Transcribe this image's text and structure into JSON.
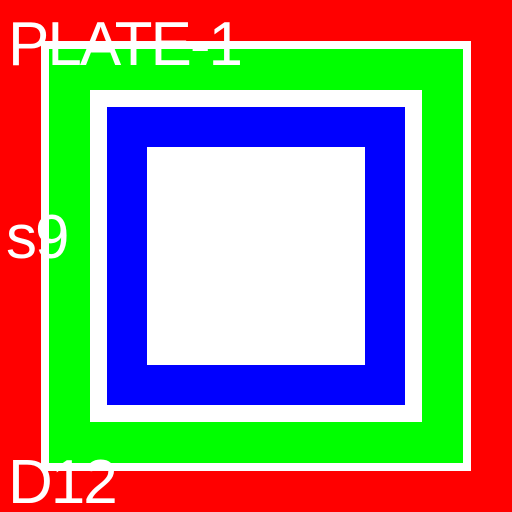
{
  "labels": {
    "top": "PLATE-1",
    "middle": "s9",
    "bottom": "D12"
  },
  "colors": {
    "background": "#ff0000",
    "outer_frame": "#ffffff",
    "green_ring": "#00ff00",
    "inner_frame": "#ffffff",
    "blue_ring": "#0000ff",
    "center": "#ffffff",
    "text": "#ffffff"
  }
}
